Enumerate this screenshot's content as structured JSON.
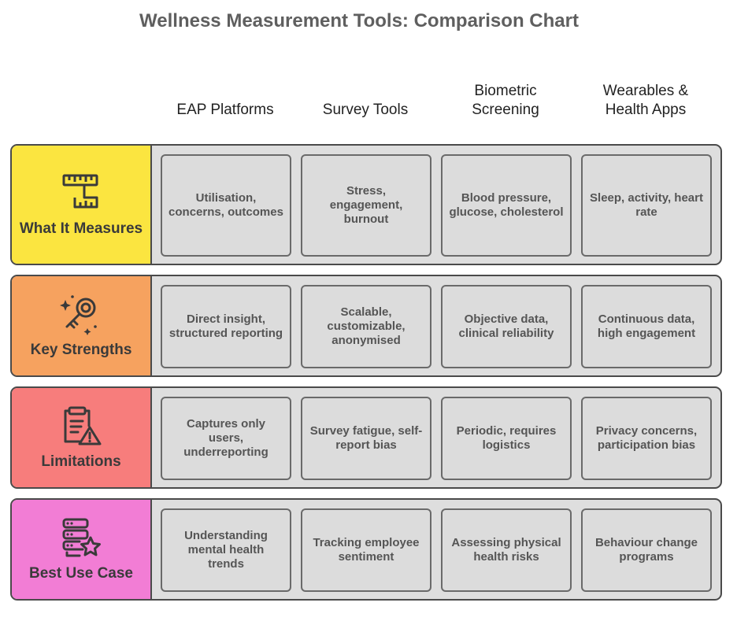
{
  "title": "Wellness Measurement Tools: Comparison Chart",
  "columns": [
    "EAP Platforms",
    "Survey Tools",
    "Biometric Screening",
    "Wearables & Health Apps"
  ],
  "rows": [
    {
      "label": "What It Measures",
      "icon": "ruler-icon",
      "color": "#fbe540",
      "cells": [
        "Utilisation, concerns, outcomes",
        "Stress, engagement, burnout",
        "Blood pressure, glucose, cholesterol",
        "Sleep, activity, heart rate"
      ]
    },
    {
      "label": "Key Strengths",
      "icon": "key-sparkle-icon",
      "color": "#f6a25f",
      "cells": [
        "Direct insight, structured reporting",
        "Scalable, customizable, anonymised",
        "Objective data, clinical reliability",
        "Continuous data, high engagement"
      ]
    },
    {
      "label": "Limitations",
      "icon": "clipboard-warning-icon",
      "color": "#f77d7c",
      "cells": [
        "Captures only users, underreporting",
        "Survey fatigue, self-report bias",
        "Periodic, requires logistics",
        "Privacy concerns, participation bias"
      ]
    },
    {
      "label": "Best Use Case",
      "icon": "server-star-icon",
      "color": "#f27dd5",
      "cells": [
        "Understanding mental health trends",
        "Tracking employee sentiment",
        "Assessing physical health risks",
        "Behaviour change programs"
      ]
    }
  ]
}
